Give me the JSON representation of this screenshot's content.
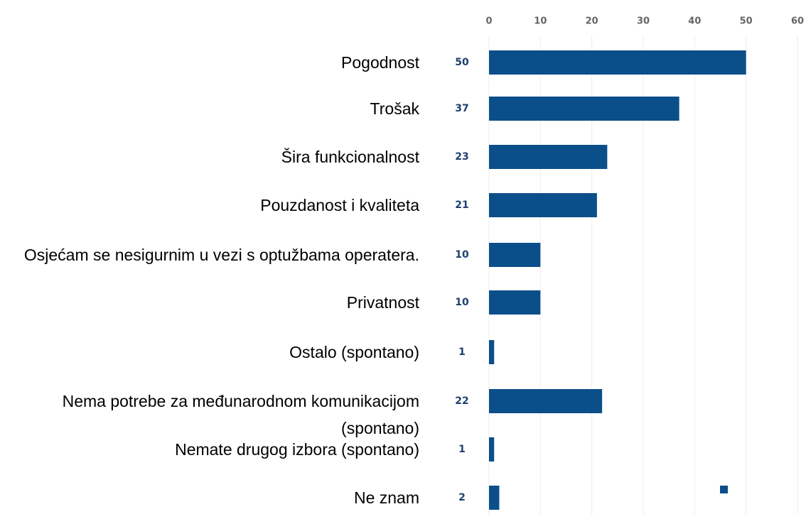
{
  "chart_data": {
    "type": "bar",
    "orientation": "horizontal",
    "categories": [
      "Pogodnost",
      "Trošak",
      "Šira funkcionalnost",
      "Pouzdanost i kvaliteta",
      "Osjećam se nesigurnim u vezi s optužbama operatera.",
      "Privatnost",
      "Ostalo (spontano)",
      "Nema potrebe za međunarodnom komunikacijom (spontano)",
      "Nemate drugog izbora (spontano)",
      "Ne znam"
    ],
    "values": [
      50,
      37,
      23,
      21,
      10,
      10,
      1,
      22,
      1,
      2
    ],
    "color": "#0b4f8a",
    "xlim": [
      0,
      60
    ],
    "xticks": [
      0,
      10,
      20,
      30,
      40,
      50,
      60
    ],
    "grid": true
  }
}
